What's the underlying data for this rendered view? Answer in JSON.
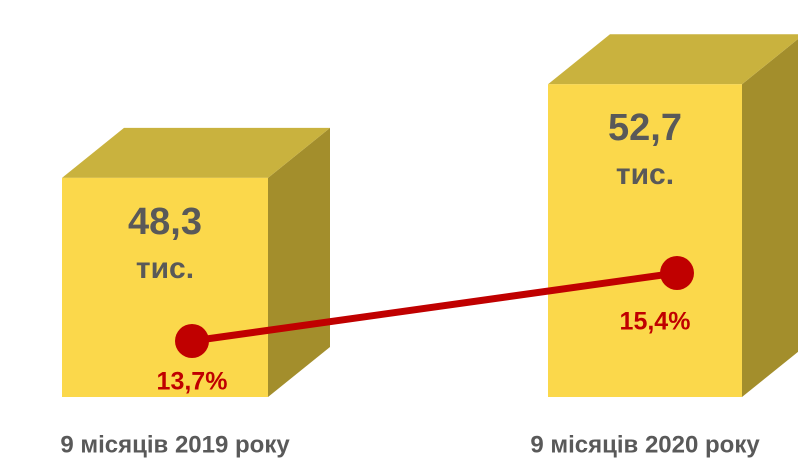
{
  "chart_data": {
    "type": "bar",
    "categories": [
      "9 місяців 2019 року",
      "9 місяців 2020 року"
    ],
    "values": [
      48.3,
      52.7
    ],
    "value_labels": [
      "48,3",
      "52,7"
    ],
    "value_unit": "тис.",
    "color": "#fbd84b",
    "ylim": [
      38,
      56
    ],
    "line": {
      "type": "line",
      "values": [
        13.7,
        15.4
      ],
      "value_labels": [
        "13,7%",
        "15,4%"
      ],
      "color": "#c00000",
      "axis": "y2"
    },
    "y2lim": [
      12.3,
      21.875
    ]
  }
}
